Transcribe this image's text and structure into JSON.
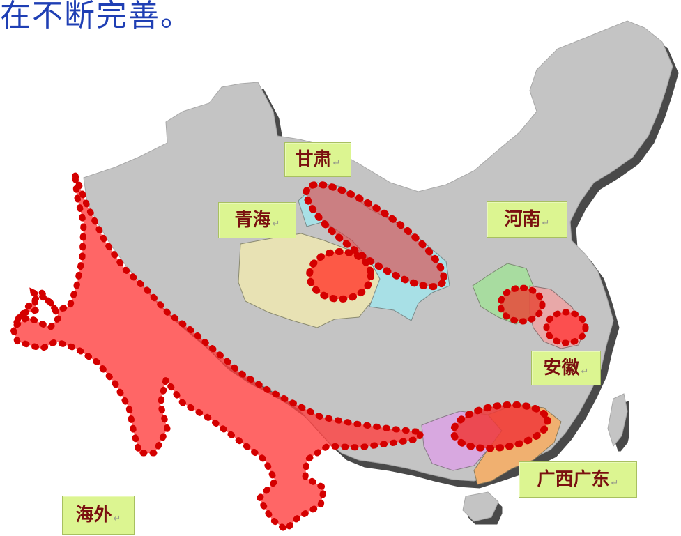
{
  "header": {
    "text_fragment": "在不断完善。"
  },
  "regions": {
    "gansu": {
      "label": "甘肃"
    },
    "qinghai": {
      "label": "青海"
    },
    "henan": {
      "label": "河南"
    },
    "anhui": {
      "label": "安徽"
    },
    "guangxi_guangdong": {
      "label": "广西广东"
    },
    "overseas": {
      "label": "海外"
    }
  },
  "return_mark": "↵",
  "colors": {
    "land": "#c4c4c4",
    "land_shadow": "#555555",
    "highlight_red": "#ff4040",
    "dotted_border": "#d40000",
    "label_bg": "#dcf591",
    "label_text": "#7a1010",
    "qinghai_fill": "#e8e2b4",
    "gansu_fill": "#a8e0e6",
    "henan_fill": "#a8dca0",
    "anhui_fill": "#e8a8a8",
    "guangxi_fill": "#d8a8e0",
    "guangdong_fill": "#f0b070"
  }
}
